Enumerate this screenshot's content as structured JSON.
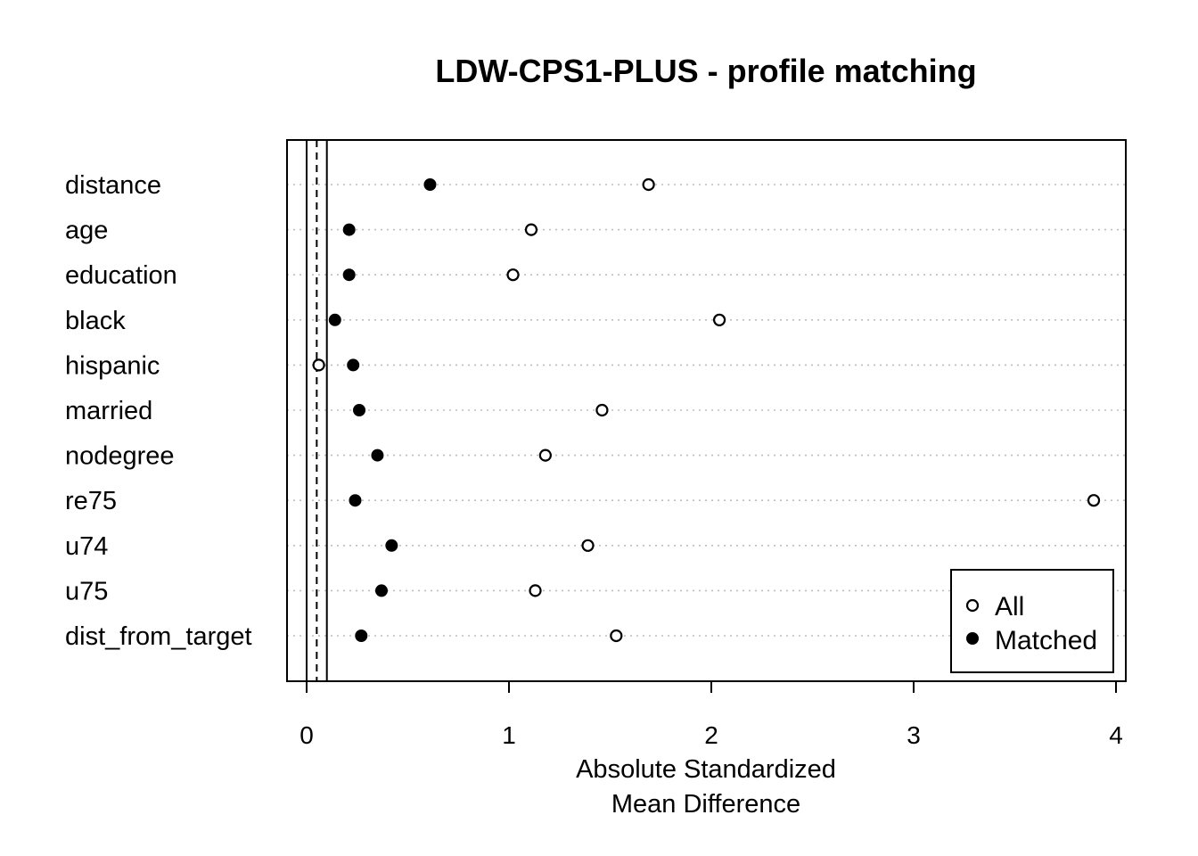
{
  "chart_data": {
    "type": "scatter",
    "title": "LDW-CPS1-PLUS - profile matching",
    "xlabel_line1": "Absolute Standardized",
    "xlabel_line2": "Mean Difference",
    "ylabel": "",
    "xlim": [
      -0.1,
      4.05
    ],
    "xticks": [
      "0",
      "1",
      "2",
      "3",
      "4"
    ],
    "vlines": {
      "solid": [
        0,
        0.1
      ],
      "dashed": [
        0.05
      ]
    },
    "grid": "horizontal dotted",
    "legend_position": "bottom-right",
    "categories": [
      "distance",
      "age",
      "education",
      "black",
      "hispanic",
      "married",
      "nodegree",
      "re75",
      "u74",
      "u75",
      "dist_from_target"
    ],
    "series": [
      {
        "name": "All",
        "marker": "open-circle",
        "values": [
          1.69,
          1.11,
          1.02,
          2.04,
          0.06,
          1.46,
          1.18,
          3.89,
          1.39,
          1.13,
          1.53
        ]
      },
      {
        "name": "Matched",
        "marker": "filled-circle",
        "values": [
          0.61,
          0.21,
          0.21,
          0.14,
          0.23,
          0.26,
          0.35,
          0.24,
          0.42,
          0.37,
          0.27
        ]
      }
    ],
    "colors": {
      "ink": "#000000",
      "grid": "#bebebe"
    }
  }
}
